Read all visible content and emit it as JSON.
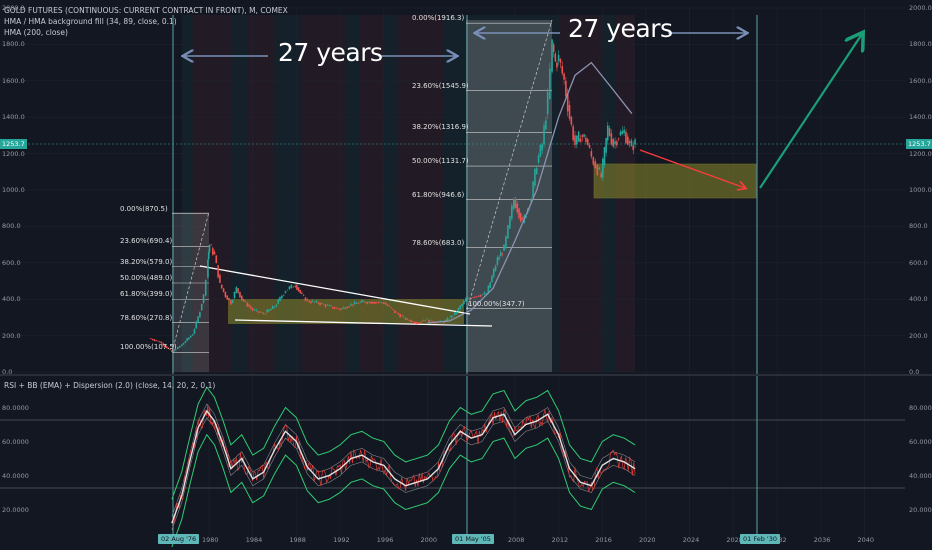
{
  "legend": {
    "line1": "GOLD FUTURES (CONTINUOUS: CURRENT CONTRACT IN FRONT), M, COMEX",
    "line2": "HMA / HMA background fill (34, 89, close, 0.1)",
    "line3": "HMA (200, close)",
    "rsi": "RSI + BB (EMA) + Dispersion (2.0) (close, 14, 20, 2, 0.1)"
  },
  "annotations": {
    "left": "27 years",
    "right": "27 years"
  },
  "last_price": "1253.7",
  "x_marks": {
    "left": "02 Aug '76",
    "mid": "01 May '05",
    "right": "01 Feb '30"
  },
  "colors": {
    "background": "#131722",
    "up": "#26a69a",
    "down": "#ef5350",
    "hma200": "#8c93b0",
    "arrow_blue": "#7a8fb8",
    "arrow_red": "#ff3b3b",
    "arrow_green": "#1b9e77",
    "zone": "#8c8a2a",
    "cycle_line": "#5fb7b7"
  },
  "chart_data": [
    {
      "type": "line",
      "title": "GOLD FUTURES (CONTINUOUS: CURRENT CONTRACT IN FRONT), M, COMEX",
      "x_ticks": [
        "1980",
        "1984",
        "1988",
        "1992",
        "1996",
        "2000",
        "2008",
        "2012",
        "2016",
        "2020",
        "2024",
        "2028",
        "2032",
        "2036",
        "2040"
      ],
      "y_ticks": [
        "0.0",
        "200.0",
        "400.0",
        "600.0",
        "800.0",
        "1000.0",
        "1200.0",
        "1400.0",
        "1600.0",
        "1800.0",
        "2000.0"
      ],
      "ylim": [
        0,
        2000
      ],
      "xlim": [
        1970.5,
        2045
      ],
      "last_price": 1253.7,
      "series": [
        {
          "x": [
            1974.5,
            1975.5,
            1976.6,
            1977.5,
            1978.5,
            1979.0,
            1979.5,
            1979.9,
            1980.05,
            1980.5,
            1981,
            1981.5,
            1982,
            1982.5,
            1983,
            1984,
            1985,
            1986,
            1987,
            1987.9,
            1988.5,
            1989,
            1990,
            1991,
            1992,
            1993,
            1994,
            1995,
            1996,
            1997,
            1998,
            1999,
            1999.8,
            2000.5,
            2001.5,
            2002.5,
            2003.5,
            2004.5,
            2005.4,
            2006.4,
            2007,
            2007.9,
            2008.7,
            2009.5,
            2010,
            2010.5,
            2011,
            2011.4,
            2011.7,
            2012,
            2012.5,
            2013,
            2013.5,
            2014,
            2014.5,
            2015,
            2015.9,
            2016.5,
            2017,
            2017.5,
            2018,
            2018.5,
            2019.0
          ],
          "values": [
            185,
            165,
            110,
            150,
            210,
            300,
            420,
            620,
            700,
            640,
            480,
            420,
            380,
            460,
            400,
            340,
            320,
            360,
            450,
            480,
            420,
            390,
            380,
            360,
            345,
            370,
            385,
            385,
            380,
            330,
            290,
            270,
            290,
            275,
            275,
            320,
            400,
            420,
            430,
            620,
            680,
            950,
            820,
            960,
            1150,
            1250,
            1500,
            1800,
            1700,
            1720,
            1600,
            1400,
            1250,
            1300,
            1280,
            1180,
            1070,
            1340,
            1250,
            1300,
            1320,
            1240,
            1253.7
          ]
        },
        {
          "x": [
            2000,
            2002,
            2004,
            2006,
            2008,
            2010,
            2012,
            2013.5,
            2015,
            2017,
            2018.7
          ],
          "values": [
            270,
            280,
            340,
            460,
            720,
            1000,
            1400,
            1630,
            1700,
            1550,
            1420
          ]
        }
      ],
      "fib_levels": [
        {
          "label": "0.00%(870.5)"
        },
        {
          "label": "23.60%(690.4)"
        },
        {
          "label": "38.20%(579.0)"
        },
        {
          "label": "50.00%(489.0)"
        },
        {
          "label": "61.80%(399.0)"
        },
        {
          "label": "78.60%(270.8)"
        },
        {
          "label": "100.00%(107.5)"
        },
        {
          "label": "0.00%(1916.3)"
        },
        {
          "label": "23.60%(1545.9)"
        },
        {
          "label": "38.20%(1316.9)"
        },
        {
          "label": "50.00%(1131.7)"
        },
        {
          "label": "61.80%(946.6)"
        },
        {
          "label": "78.60%(683.0)"
        },
        {
          "label": "100.00%(347.7)"
        }
      ],
      "fib_values": [
        870.5,
        690.4,
        579.0,
        489.0,
        399.0,
        270.8,
        107.5,
        1916.3,
        1545.9,
        1316.9,
        1131.7,
        946.6,
        683.0,
        347.7
      ]
    },
    {
      "type": "line",
      "title": "RSI + BB (EMA) + Dispersion (2.0) (close, 14, 20, 2, 0.1)",
      "y_ticks": [
        "20.0000",
        "40.0000",
        "60.0000",
        "80.0000"
      ],
      "ylim": [
        5,
        95
      ],
      "levels": [
        70,
        30
      ],
      "series": [
        {
          "x": [
            1976.6,
            1977.5,
            1978.3,
            1979.0,
            1979.8,
            1980.5,
            1981.3,
            1982.0,
            1983.0,
            1984.0,
            1985.0,
            1986.0,
            1987.0,
            1988.0,
            1989.0,
            1990.0,
            1991.0,
            1992.0,
            1993.0,
            1994.0,
            1995.0,
            1996.0,
            1997.0,
            1998.0,
            1999.0,
            2000.0,
            2001.0,
            2002.0,
            2003.0,
            2004.0,
            2005.0,
            2006.0,
            2007.0,
            2008.0,
            2009.0,
            2010.0,
            2011.0,
            2012.0,
            2013.0,
            2014.0,
            2015.0,
            2016.0,
            2017.0,
            2018.0,
            2019.0
          ],
          "values": [
            12,
            28,
            50,
            68,
            78,
            72,
            58,
            44,
            50,
            38,
            42,
            55,
            66,
            60,
            45,
            38,
            40,
            44,
            50,
            52,
            48,
            46,
            38,
            34,
            36,
            38,
            44,
            58,
            66,
            62,
            64,
            74,
            76,
            64,
            70,
            72,
            76,
            64,
            44,
            36,
            34,
            46,
            50,
            48,
            44
          ]
        }
      ]
    }
  ]
}
